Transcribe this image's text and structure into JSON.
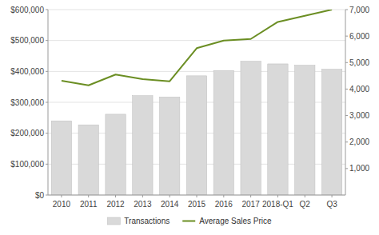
{
  "chart_data": {
    "type": "bar",
    "categories": [
      "2010",
      "2011",
      "2012",
      "2013",
      "2014",
      "2015",
      "2016",
      "2017",
      "2018-Q1",
      "Q2",
      "Q3"
    ],
    "series": [
      {
        "name": "Transactions",
        "type": "bar",
        "axis": "y2",
        "color": "#d9d9d9",
        "values": [
          2800,
          2650,
          3050,
          3750,
          3700,
          4500,
          4700,
          5050,
          4950,
          4900,
          4750
        ]
      },
      {
        "name": "Average Sales Price",
        "type": "line",
        "color": "#6b8e23",
        "values": [
          370000,
          355000,
          390000,
          375000,
          368000,
          475000,
          500000,
          505000,
          560000,
          580000,
          600000
        ]
      }
    ],
    "ylim": [
      0,
      600000
    ],
    "yticks": [
      {
        "value": 0,
        "label": "$0"
      },
      {
        "value": 100000,
        "label": "$100,000"
      },
      {
        "value": 200000,
        "label": "$200,000"
      },
      {
        "value": 300000,
        "label": "$300,000"
      },
      {
        "value": 400000,
        "label": "$400,000"
      },
      {
        "value": 500000,
        "label": "$500,000"
      },
      {
        "value": 600000,
        "label": "$600,000"
      }
    ],
    "y2lim": [
      0,
      7000
    ],
    "y2ticks": [
      {
        "value": 1000,
        "label": "1,000"
      },
      {
        "value": 2000,
        "label": "2,000"
      },
      {
        "value": 3000,
        "label": "3,000"
      },
      {
        "value": 4000,
        "label": "4,000"
      },
      {
        "value": 5000,
        "label": "5,000"
      },
      {
        "value": 6000,
        "label": "6,000"
      },
      {
        "value": 7000,
        "label": "7,000"
      }
    ],
    "grid": true,
    "legend": "bottom"
  }
}
